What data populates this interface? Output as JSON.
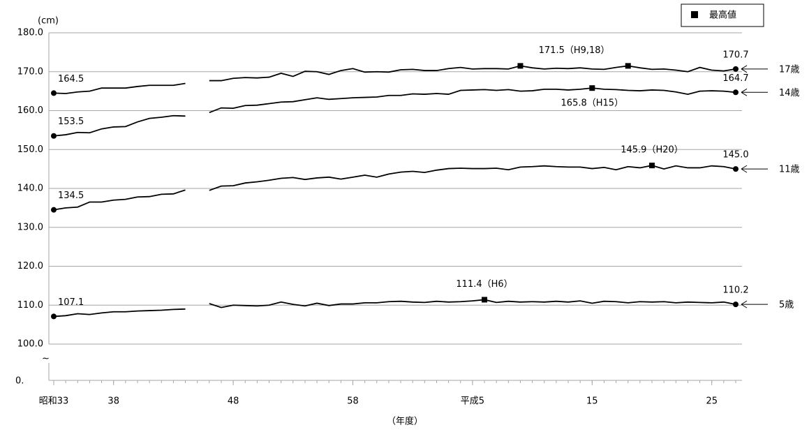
{
  "chart_data": {
    "type": "line",
    "y_axis_label": "(cm)",
    "x_axis_label": "（年度）",
    "axis_break_label": "0.",
    "axis_break_mark": "~",
    "legend_label": "最高値",
    "x": [
      1958,
      1959,
      1960,
      1961,
      1962,
      1963,
      1964,
      1965,
      1966,
      1967,
      1968,
      1969,
      1970,
      1971,
      1972,
      1973,
      1974,
      1975,
      1976,
      1977,
      1978,
      1979,
      1980,
      1981,
      1982,
      1983,
      1984,
      1985,
      1986,
      1987,
      1988,
      1989,
      1990,
      1991,
      1992,
      1993,
      1994,
      1995,
      1996,
      1997,
      1998,
      1999,
      2000,
      2001,
      2002,
      2003,
      2004,
      2005,
      2006,
      2007,
      2008,
      2009,
      2010,
      2011,
      2012,
      2013,
      2014,
      2015
    ],
    "xlim": [
      1958,
      2015
    ],
    "xticks": [
      {
        "value": 1958,
        "label": "昭和33"
      },
      {
        "value": 1963,
        "label": "38"
      },
      {
        "value": 1973,
        "label": "48"
      },
      {
        "value": 1983,
        "label": "58"
      },
      {
        "value": 1993,
        "label": "平成5"
      },
      {
        "value": 2003,
        "label": "15"
      },
      {
        "value": 2013,
        "label": "25"
      }
    ],
    "ylim": [
      100,
      180
    ],
    "yticks": [
      {
        "value": 100,
        "label": "100.0"
      },
      {
        "value": 110,
        "label": "110.0"
      },
      {
        "value": 120,
        "label": "120.0"
      },
      {
        "value": 130,
        "label": "130.0"
      },
      {
        "value": 140,
        "label": "140.0"
      },
      {
        "value": 150,
        "label": "150.0"
      },
      {
        "value": 160,
        "label": "160.0"
      },
      {
        "value": 170,
        "label": "170.0"
      },
      {
        "value": 180,
        "label": "180.0"
      }
    ],
    "grid": true,
    "series": [
      {
        "name": "17歳",
        "color": "#000000",
        "max_x": [
          1997,
          2006
        ],
        "max_label": "171.5（H9,18）",
        "max_label_side": "above",
        "values": [
          164.5,
          164.4,
          164.8,
          165.0,
          165.8,
          165.8,
          165.8,
          166.2,
          166.5,
          166.5,
          166.5,
          167.0,
          null,
          167.7,
          167.7,
          168.3,
          168.5,
          168.4,
          168.6,
          169.6,
          168.8,
          170.1,
          170.0,
          169.3,
          170.3,
          170.8,
          169.9,
          170.0,
          169.9,
          170.5,
          170.6,
          170.3,
          170.3,
          170.8,
          171.1,
          170.7,
          170.8,
          170.8,
          170.7,
          171.5,
          171.0,
          170.7,
          170.9,
          170.8,
          171.0,
          170.7,
          170.6,
          171.1,
          171.5,
          171.0,
          170.6,
          170.7,
          170.4,
          170.0,
          171.1,
          170.4,
          170.2,
          170.7
        ],
        "value_labels": [
          "164.5",
          null,
          null,
          null,
          null,
          null,
          null,
          null,
          null,
          null,
          null,
          null,
          null,
          null,
          null,
          null,
          null,
          null,
          null,
          null,
          null,
          null,
          null,
          null,
          null,
          null,
          null,
          null,
          null,
          null,
          null,
          null,
          null,
          null,
          null,
          null,
          null,
          null,
          null,
          null,
          null,
          null,
          null,
          null,
          null,
          null,
          null,
          null,
          null,
          null,
          null,
          null,
          null,
          null,
          null,
          null,
          null,
          "170.7"
        ]
      },
      {
        "name": "14歳",
        "color": "#000000",
        "max_x": [
          2003
        ],
        "max_label": "165.8（H15）",
        "max_label_side": "below",
        "values": [
          153.5,
          153.8,
          154.4,
          154.3,
          155.3,
          155.8,
          155.9,
          157.1,
          158.0,
          158.3,
          158.7,
          158.6,
          null,
          159.5,
          160.7,
          160.6,
          161.3,
          161.4,
          161.8,
          162.2,
          162.3,
          162.8,
          163.3,
          162.9,
          163.1,
          163.3,
          163.4,
          163.5,
          163.9,
          163.9,
          164.3,
          164.2,
          164.4,
          164.2,
          165.2,
          165.3,
          165.4,
          165.2,
          165.4,
          165.0,
          165.1,
          165.5,
          165.5,
          165.3,
          165.5,
          165.8,
          165.5,
          165.4,
          165.2,
          165.1,
          165.3,
          165.2,
          164.8,
          164.2,
          165.0,
          165.1,
          165.0,
          164.7
        ],
        "value_labels": [
          "153.5",
          null,
          null,
          null,
          null,
          null,
          null,
          null,
          null,
          null,
          null,
          null,
          null,
          null,
          null,
          null,
          null,
          null,
          null,
          null,
          null,
          null,
          null,
          null,
          null,
          null,
          null,
          null,
          null,
          null,
          null,
          null,
          null,
          null,
          null,
          null,
          null,
          null,
          null,
          null,
          null,
          null,
          null,
          null,
          null,
          null,
          null,
          null,
          null,
          null,
          null,
          null,
          null,
          null,
          null,
          null,
          null,
          "164.7"
        ]
      },
      {
        "name": "11歳",
        "color": "#000000",
        "max_x": [
          2008
        ],
        "max_label": "145.9（H20）",
        "max_label_side": "above",
        "values": [
          134.5,
          135.0,
          135.2,
          136.5,
          136.5,
          137.0,
          137.2,
          137.8,
          137.9,
          138.5,
          138.6,
          139.6,
          null,
          139.5,
          140.6,
          140.7,
          141.4,
          141.7,
          142.1,
          142.6,
          142.8,
          142.3,
          142.7,
          142.9,
          142.4,
          142.9,
          143.4,
          142.9,
          143.7,
          144.2,
          144.4,
          144.1,
          144.7,
          145.1,
          145.2,
          145.1,
          145.1,
          145.2,
          144.8,
          145.5,
          145.6,
          145.8,
          145.6,
          145.5,
          145.5,
          145.1,
          145.4,
          144.8,
          145.6,
          145.3,
          145.9,
          145.0,
          145.8,
          145.3,
          145.3,
          145.8,
          145.6,
          145.0
        ],
        "value_labels": [
          "134.5",
          null,
          null,
          null,
          null,
          null,
          null,
          null,
          null,
          null,
          null,
          null,
          null,
          null,
          null,
          null,
          null,
          null,
          null,
          null,
          null,
          null,
          null,
          null,
          null,
          null,
          null,
          null,
          null,
          null,
          null,
          null,
          null,
          null,
          null,
          null,
          null,
          null,
          null,
          null,
          null,
          null,
          null,
          null,
          null,
          null,
          null,
          null,
          null,
          null,
          null,
          null,
          null,
          null,
          null,
          null,
          null,
          "145.0"
        ]
      },
      {
        "name": "5歳",
        "color": "#000000",
        "max_x": [
          1994
        ],
        "max_label": "111.4（H6）",
        "max_label_side": "above",
        "values": [
          107.1,
          107.3,
          107.8,
          107.6,
          108.0,
          108.3,
          108.3,
          108.5,
          108.6,
          108.7,
          108.9,
          109.0,
          null,
          110.4,
          109.4,
          110.0,
          109.9,
          109.8,
          110.0,
          110.8,
          110.2,
          109.8,
          110.5,
          109.9,
          110.3,
          110.3,
          110.6,
          110.6,
          110.9,
          111.0,
          110.8,
          110.7,
          111.0,
          110.8,
          110.9,
          111.1,
          111.4,
          110.7,
          111.0,
          110.8,
          110.9,
          110.8,
          111.0,
          110.8,
          111.1,
          110.5,
          111.0,
          110.9,
          110.6,
          110.9,
          110.8,
          110.9,
          110.6,
          110.8,
          110.7,
          110.6,
          110.8,
          110.2
        ],
        "value_labels": [
          "107.1",
          null,
          null,
          null,
          null,
          null,
          null,
          null,
          null,
          null,
          null,
          null,
          null,
          null,
          null,
          null,
          null,
          null,
          null,
          null,
          null,
          null,
          null,
          null,
          null,
          null,
          null,
          null,
          null,
          null,
          null,
          null,
          null,
          null,
          null,
          null,
          null,
          null,
          null,
          null,
          null,
          null,
          null,
          null,
          null,
          null,
          null,
          null,
          null,
          null,
          null,
          null,
          null,
          null,
          null,
          null,
          null,
          "110.2"
        ]
      }
    ]
  }
}
